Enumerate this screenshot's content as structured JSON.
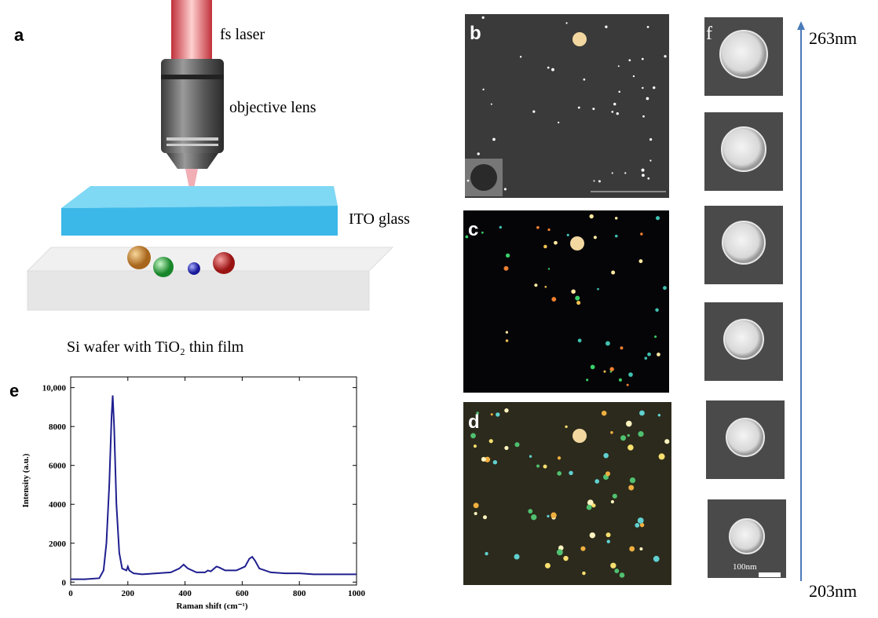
{
  "labels": [
    "a",
    "b",
    "c",
    "d",
    "e",
    "f"
  ],
  "schematic": {
    "laser": "fs laser",
    "lens": "objective lens",
    "glass": "ITO glass",
    "substrate": "Si wafer with TiO₂ thin film"
  },
  "size_series": {
    "max": "263nm",
    "min": "203nm",
    "scale_bar": "100nm"
  },
  "chart_data": {
    "type": "line",
    "x_label": "Raman shift (cm⁻¹)",
    "y_label": "Intensity (a.u.)",
    "x": [
      0,
      50,
      100,
      115,
      125,
      135,
      143,
      147,
      152,
      160,
      170,
      180,
      195,
      200,
      205,
      220,
      250,
      300,
      350,
      380,
      395,
      410,
      440,
      470,
      480,
      490,
      510,
      520,
      540,
      580,
      610,
      625,
      635,
      645,
      660,
      700,
      750,
      800,
      850,
      900,
      950,
      1000
    ],
    "values": [
      150,
      150,
      200,
      600,
      2000,
      5000,
      8500,
      9600,
      8000,
      4000,
      1500,
      700,
      600,
      800,
      600,
      450,
      400,
      450,
      500,
      700,
      900,
      700,
      500,
      500,
      600,
      550,
      800,
      750,
      600,
      600,
      800,
      1200,
      1300,
      1100,
      700,
      500,
      450,
      450,
      400,
      400,
      400,
      400
    ],
    "color": "#1f1f8f",
    "xlim": [
      0,
      1000
    ],
    "ylim": [
      -150,
      10550
    ],
    "xticks": [
      0,
      200,
      400,
      600,
      800,
      1000
    ],
    "yticks": [
      0,
      2000,
      4000,
      6000,
      8000,
      {
        "value": 10000,
        "label": "10,000"
      }
    ]
  }
}
